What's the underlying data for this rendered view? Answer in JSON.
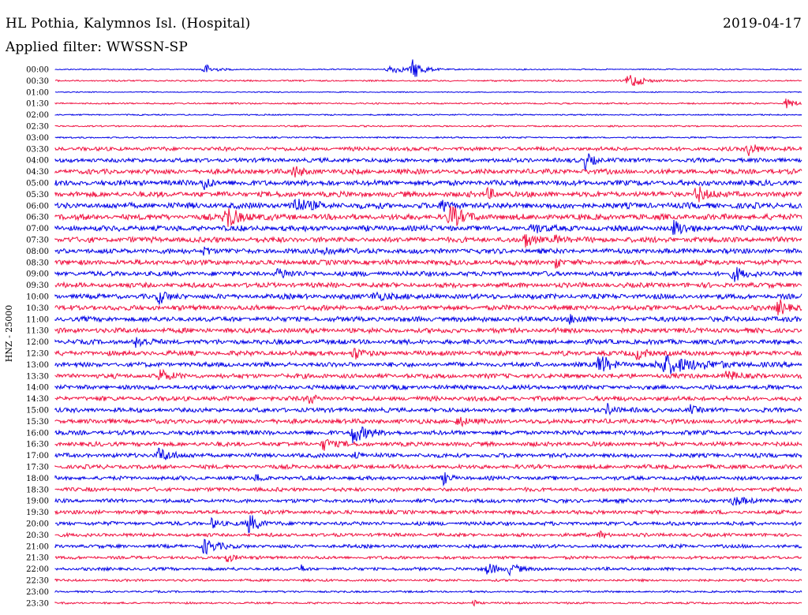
{
  "header": {
    "station": "HL Pothia, Kalymnos Isl. (Hospital)",
    "date": "2019-04-17",
    "filter": "Applied filter: WWSSN-SP"
  },
  "chart_data": {
    "type": "line",
    "axis_label": "HNZ - 25000",
    "row_labels": [
      "00:00",
      "00:30",
      "01:00",
      "01:30",
      "02:00",
      "02:30",
      "03:00",
      "03:30",
      "04:00",
      "04:30",
      "05:00",
      "05:30",
      "06:00",
      "06:30",
      "07:00",
      "07:30",
      "08:00",
      "08:30",
      "09:00",
      "09:30",
      "10:00",
      "10:30",
      "11:00",
      "11:30",
      "12:00",
      "12:30",
      "13:00",
      "13:30",
      "14:00",
      "14:30",
      "15:00",
      "15:30",
      "16:00",
      "16:30",
      "17:00",
      "17:30",
      "18:00",
      "18:30",
      "19:00",
      "19:30",
      "20:00",
      "20:30",
      "21:00",
      "21:30",
      "22:00",
      "22:30",
      "23:00",
      "23:30"
    ],
    "row_colors": [
      "#0000e6",
      "#f01040"
    ],
    "noise_amplitude": [
      0.6,
      0.8,
      0.5,
      0.8,
      0.7,
      0.8,
      0.8,
      2.0,
      2.2,
      2.6,
      2.8,
      2.8,
      3.0,
      3.0,
      2.8,
      2.8,
      2.6,
      2.6,
      2.5,
      2.5,
      2.6,
      2.6,
      2.6,
      2.6,
      2.5,
      2.5,
      2.4,
      2.4,
      2.3,
      2.4,
      2.3,
      2.4,
      2.3,
      2.3,
      2.2,
      2.2,
      2.0,
      2.0,
      2.0,
      2.0,
      2.0,
      1.8,
      1.8,
      1.6,
      1.6,
      1.2,
      1.0,
      1.0
    ],
    "events": [
      {
        "row": "00:00",
        "x": 0.2,
        "amp": 7,
        "w": 0.012
      },
      {
        "row": "00:00",
        "x": 0.45,
        "amp": 5,
        "w": 0.02
      },
      {
        "row": "00:00",
        "x": 0.48,
        "amp": 12,
        "w": 0.012
      },
      {
        "row": "00:30",
        "x": 0.77,
        "amp": 10,
        "w": 0.015
      },
      {
        "row": "01:30",
        "x": 0.98,
        "amp": 6,
        "w": 0.012
      },
      {
        "row": "03:30",
        "x": 0.93,
        "amp": 8,
        "w": 0.012
      },
      {
        "row": "04:00",
        "x": 0.71,
        "amp": 10,
        "w": 0.01
      },
      {
        "row": "04:30",
        "x": 0.32,
        "amp": 6,
        "w": 0.012
      },
      {
        "row": "05:00",
        "x": 0.2,
        "amp": 9,
        "w": 0.008
      },
      {
        "row": "05:30",
        "x": 0.86,
        "amp": 10,
        "w": 0.012
      },
      {
        "row": "05:30",
        "x": 0.58,
        "amp": 6,
        "w": 0.01
      },
      {
        "row": "06:00",
        "x": 0.32,
        "amp": 8,
        "w": 0.02
      },
      {
        "row": "06:00",
        "x": 0.52,
        "amp": 7,
        "w": 0.01
      },
      {
        "row": "06:30",
        "x": 0.23,
        "amp": 14,
        "w": 0.015
      },
      {
        "row": "06:30",
        "x": 0.53,
        "amp": 13,
        "w": 0.015
      },
      {
        "row": "07:00",
        "x": 0.83,
        "amp": 9,
        "w": 0.012
      },
      {
        "row": "07:00",
        "x": 0.64,
        "amp": 7,
        "w": 0.01
      },
      {
        "row": "07:30",
        "x": 0.63,
        "amp": 8,
        "w": 0.01
      },
      {
        "row": "07:30",
        "x": 0.67,
        "amp": 7,
        "w": 0.006
      },
      {
        "row": "08:00",
        "x": 0.2,
        "amp": 7,
        "w": 0.006
      },
      {
        "row": "08:00",
        "x": 0.36,
        "amp": 7,
        "w": 0.01
      },
      {
        "row": "08:30",
        "x": 0.67,
        "amp": 12,
        "w": 0.004
      },
      {
        "row": "09:00",
        "x": 0.3,
        "amp": 6,
        "w": 0.012
      },
      {
        "row": "09:00",
        "x": 0.91,
        "amp": 8,
        "w": 0.012
      },
      {
        "row": "10:00",
        "x": 0.14,
        "amp": 8,
        "w": 0.01
      },
      {
        "row": "10:00",
        "x": 0.43,
        "amp": 6,
        "w": 0.015
      },
      {
        "row": "10:30",
        "x": 0.97,
        "amp": 9,
        "w": 0.012
      },
      {
        "row": "11:00",
        "x": 0.69,
        "amp": 6,
        "w": 0.01
      },
      {
        "row": "12:00",
        "x": 0.11,
        "amp": 8,
        "w": 0.01
      },
      {
        "row": "12:30",
        "x": 0.4,
        "amp": 8,
        "w": 0.008
      },
      {
        "row": "12:30",
        "x": 0.78,
        "amp": 7,
        "w": 0.012
      },
      {
        "row": "13:00",
        "x": 0.73,
        "amp": 14,
        "w": 0.012
      },
      {
        "row": "13:00",
        "x": 0.82,
        "amp": 11,
        "w": 0.04
      },
      {
        "row": "13:30",
        "x": 0.14,
        "amp": 9,
        "w": 0.01
      },
      {
        "row": "13:30",
        "x": 0.9,
        "amp": 7,
        "w": 0.01
      },
      {
        "row": "14:30",
        "x": 0.34,
        "amp": 6,
        "w": 0.008
      },
      {
        "row": "15:00",
        "x": 0.74,
        "amp": 8,
        "w": 0.008
      },
      {
        "row": "15:00",
        "x": 0.85,
        "amp": 6,
        "w": 0.006
      },
      {
        "row": "15:30",
        "x": 0.54,
        "amp": 6,
        "w": 0.01
      },
      {
        "row": "16:00",
        "x": 0.4,
        "amp": 13,
        "w": 0.015
      },
      {
        "row": "16:30",
        "x": 0.36,
        "amp": 7,
        "w": 0.012
      },
      {
        "row": "17:00",
        "x": 0.14,
        "amp": 10,
        "w": 0.012
      },
      {
        "row": "17:00",
        "x": 0.4,
        "amp": 6,
        "w": 0.006
      },
      {
        "row": "18:00",
        "x": 0.52,
        "amp": 7,
        "w": 0.008
      },
      {
        "row": "18:00",
        "x": 0.27,
        "amp": 5,
        "w": 0.008
      },
      {
        "row": "19:00",
        "x": 0.91,
        "amp": 6,
        "w": 0.012
      },
      {
        "row": "20:00",
        "x": 0.26,
        "amp": 12,
        "w": 0.012
      },
      {
        "row": "20:00",
        "x": 0.21,
        "amp": 6,
        "w": 0.008
      },
      {
        "row": "20:30",
        "x": 0.73,
        "amp": 5,
        "w": 0.008
      },
      {
        "row": "21:00",
        "x": 0.2,
        "amp": 10,
        "w": 0.015
      },
      {
        "row": "21:30",
        "x": 0.23,
        "amp": 7,
        "w": 0.008
      },
      {
        "row": "22:00",
        "x": 0.58,
        "amp": 8,
        "w": 0.01
      },
      {
        "row": "22:00",
        "x": 0.61,
        "amp": 8,
        "w": 0.01
      },
      {
        "row": "22:00",
        "x": 0.33,
        "amp": 5,
        "w": 0.004
      },
      {
        "row": "23:30",
        "x": 0.56,
        "amp": 8,
        "w": 0.003
      }
    ]
  }
}
